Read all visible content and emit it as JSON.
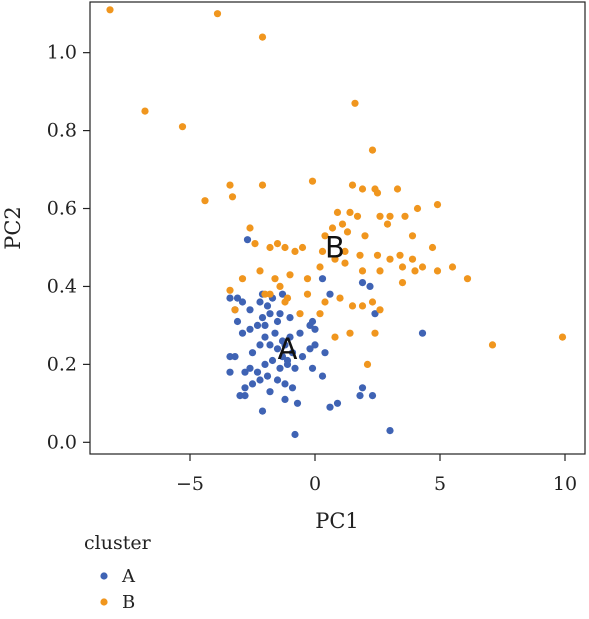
{
  "chart_data": {
    "type": "scatter",
    "xlabel": "PC1",
    "ylabel": "PC2",
    "xlim": [
      -9.0,
      10.8
    ],
    "ylim": [
      -0.03,
      1.13
    ],
    "xticks": [
      -5,
      0,
      5,
      10
    ],
    "xtick_labels": [
      "−5",
      "0",
      "5",
      "10"
    ],
    "yticks": [
      0.0,
      0.2,
      0.4,
      0.6,
      0.8,
      1.0
    ],
    "ytick_labels": [
      "0.0",
      "0.2",
      "0.4",
      "0.6",
      "0.8",
      "1.0"
    ],
    "grid": false,
    "legend": {
      "title": "cluster",
      "placement": "below-left"
    },
    "series": [
      {
        "name": "A",
        "color": "#3f63b4",
        "x": [
          -2.7,
          -3.4,
          -3.1,
          -2.9,
          -3.2,
          -2.6,
          -2.2,
          -1.9,
          -2.1,
          -1.7,
          -1.4,
          -1.0,
          -1.8,
          -1.5,
          -2.0,
          -3.1,
          -2.9,
          -2.6,
          -2.3,
          -2.0,
          -1.6,
          -1.3,
          -1.0,
          -0.6,
          -0.2,
          0.0,
          -3.4,
          -3.2,
          -2.5,
          -2.2,
          -1.8,
          -1.5,
          -1.2,
          -1.3,
          -1.1,
          -0.9,
          -0.5,
          -0.2,
          0.0,
          0.4,
          -2.8,
          -2.6,
          -2.3,
          -2.0,
          -1.7,
          -1.4,
          -1.1,
          -0.8,
          -3.4,
          -2.8,
          -2.5,
          -2.2,
          -1.9,
          -1.5,
          -1.2,
          -0.9,
          -3.0,
          -1.8,
          -1.2,
          -0.7,
          -0.1,
          0.3,
          -2.8,
          -2.1,
          -0.8,
          0.6,
          0.9,
          1.9,
          2.3,
          4.3,
          3.0,
          0.6,
          -0.1,
          0.3,
          -1.3,
          2.2,
          -2.1,
          1.8,
          2.4,
          1.9
        ],
        "y": [
          0.52,
          0.37,
          0.37,
          0.36,
          0.34,
          0.34,
          0.36,
          0.35,
          0.38,
          0.37,
          0.33,
          0.32,
          0.33,
          0.31,
          0.3,
          0.31,
          0.28,
          0.29,
          0.3,
          0.27,
          0.28,
          0.26,
          0.27,
          0.28,
          0.3,
          0.29,
          0.22,
          0.22,
          0.23,
          0.25,
          0.25,
          0.24,
          0.25,
          0.22,
          0.21,
          0.23,
          0.22,
          0.24,
          0.25,
          0.23,
          0.18,
          0.19,
          0.18,
          0.2,
          0.21,
          0.19,
          0.2,
          0.19,
          0.18,
          0.14,
          0.15,
          0.16,
          0.17,
          0.16,
          0.15,
          0.14,
          0.12,
          0.13,
          0.11,
          0.1,
          0.19,
          0.17,
          0.12,
          0.08,
          0.02,
          0.09,
          0.1,
          0.14,
          0.12,
          0.28,
          0.03,
          0.38,
          0.31,
          0.42,
          0.38,
          0.4,
          0.32,
          0.12,
          0.33,
          0.41
        ],
        "label": "A",
        "label_at": [
          -1.1,
          0.24
        ]
      },
      {
        "name": "B",
        "color": "#f0961e",
        "x": [
          -8.2,
          -3.9,
          -2.1,
          -6.8,
          -5.3,
          1.6,
          -3.4,
          -3.3,
          -2.1,
          -4.4,
          -0.1,
          1.5,
          2.3,
          1.9,
          2.4,
          3.3,
          2.5,
          4.9,
          0.9,
          1.4,
          1.7,
          2.6,
          3.0,
          2.9,
          1.1,
          0.7,
          0.4,
          1.3,
          2.0,
          3.6,
          4.1,
          3.9,
          -2.6,
          -2.4,
          -1.8,
          -1.5,
          -1.2,
          -0.8,
          -0.5,
          0.3,
          1.2,
          1.8,
          2.5,
          3.4,
          4.0,
          4.9,
          4.3,
          4.7,
          5.5,
          6.1,
          3.5,
          3.0,
          2.6,
          1.9,
          1.2,
          0.8,
          0.2,
          -0.3,
          -1.0,
          -1.6,
          -2.2,
          -2.9,
          -1.4,
          -1.8,
          -1.1,
          -0.3,
          0.4,
          1.0,
          1.5,
          1.9,
          2.3,
          2.6,
          -3.2,
          -3.4,
          -2.0,
          -1.2,
          -0.6,
          0.2,
          0.8,
          1.4,
          2.4,
          7.1,
          9.9,
          3.9,
          3.5,
          2.1
        ],
        "y": [
          1.11,
          1.1,
          1.04,
          0.85,
          0.81,
          0.87,
          0.66,
          0.63,
          0.66,
          0.62,
          0.67,
          0.66,
          0.75,
          0.65,
          0.65,
          0.65,
          0.64,
          0.61,
          0.59,
          0.59,
          0.58,
          0.58,
          0.58,
          0.56,
          0.56,
          0.55,
          0.53,
          0.54,
          0.53,
          0.58,
          0.6,
          0.53,
          0.55,
          0.51,
          0.5,
          0.51,
          0.5,
          0.49,
          0.5,
          0.49,
          0.49,
          0.48,
          0.48,
          0.48,
          0.44,
          0.44,
          0.45,
          0.5,
          0.45,
          0.42,
          0.45,
          0.47,
          0.44,
          0.44,
          0.46,
          0.47,
          0.45,
          0.42,
          0.43,
          0.42,
          0.44,
          0.42,
          0.4,
          0.38,
          0.37,
          0.38,
          0.36,
          0.37,
          0.35,
          0.35,
          0.36,
          0.34,
          0.34,
          0.39,
          0.38,
          0.36,
          0.33,
          0.33,
          0.27,
          0.28,
          0.28,
          0.25,
          0.27,
          0.47,
          0.41,
          0.2
        ],
        "label": "B",
        "label_at": [
          0.8,
          0.5
        ]
      }
    ]
  }
}
